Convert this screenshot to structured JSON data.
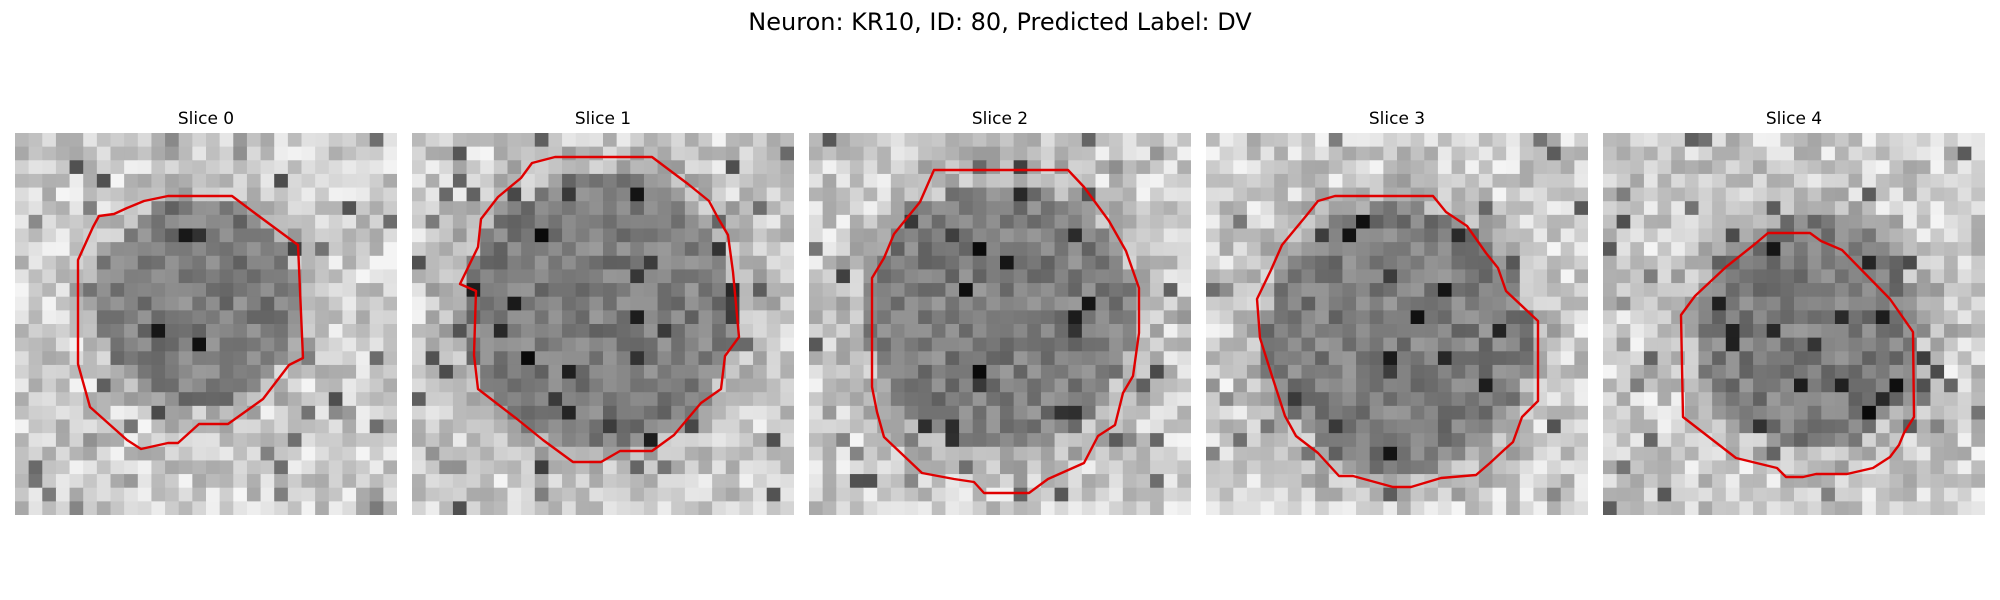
{
  "figure": {
    "title": "Neuron: KR10, ID: 80, Predicted Label: DV",
    "panels": [
      {
        "title": "Slice 0",
        "seed": 11
      },
      {
        "title": "Slice 1",
        "seed": 23
      },
      {
        "title": "Slice 2",
        "seed": 37
      },
      {
        "title": "Slice 3",
        "seed": 41
      },
      {
        "title": "Slice 4",
        "seed": 59
      }
    ],
    "contour_color": "#e00000"
  }
}
